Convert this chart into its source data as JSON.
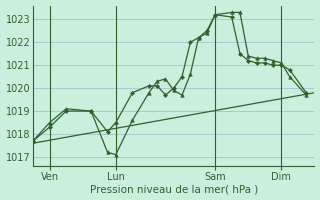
{
  "bg_color": "#cceedd",
  "grid_color": "#99bbcc",
  "line_color": "#2d622d",
  "xlabel": "Pression niveau de la mer( hPa )",
  "yticks": [
    1017,
    1018,
    1019,
    1020,
    1021,
    1022,
    1023
  ],
  "xtick_labels": [
    "Ven",
    "Lun",
    "Sam",
    "Dim"
  ],
  "xtick_pos": [
    2,
    10,
    22,
    30
  ],
  "xmin": 0,
  "xmax": 34,
  "ymin": 1016.6,
  "ymax": 1023.6,
  "series_trend": {
    "x": [
      0,
      34
    ],
    "y": [
      1017.6,
      1019.8
    ]
  },
  "series_diamond": {
    "x": [
      0,
      2,
      4,
      7,
      9,
      10,
      12,
      14,
      15,
      16,
      17,
      18,
      19,
      20,
      21,
      22,
      24,
      25,
      26,
      27,
      28,
      29,
      30,
      31,
      33
    ],
    "y": [
      1017.7,
      1018.3,
      1019.0,
      1019.0,
      1018.1,
      1018.5,
      1019.8,
      1020.1,
      1020.1,
      1019.7,
      1020.0,
      1020.5,
      1022.0,
      1022.2,
      1022.5,
      1023.2,
      1023.1,
      1021.5,
      1021.2,
      1021.1,
      1021.1,
      1021.0,
      1021.0,
      1020.8,
      1019.8
    ]
  },
  "series_triangle": {
    "x": [
      0,
      2,
      4,
      7,
      9,
      10,
      12,
      14,
      15,
      16,
      17,
      18,
      19,
      20,
      21,
      22,
      24,
      25,
      26,
      27,
      28,
      29,
      30,
      31,
      33
    ],
    "y": [
      1017.7,
      1018.5,
      1019.1,
      1019.0,
      1017.2,
      1017.1,
      1018.6,
      1019.8,
      1020.3,
      1020.4,
      1019.9,
      1019.7,
      1020.6,
      1022.2,
      1022.4,
      1023.2,
      1023.3,
      1023.3,
      1021.4,
      1021.3,
      1021.3,
      1021.2,
      1021.1,
      1020.5,
      1019.7
    ]
  }
}
